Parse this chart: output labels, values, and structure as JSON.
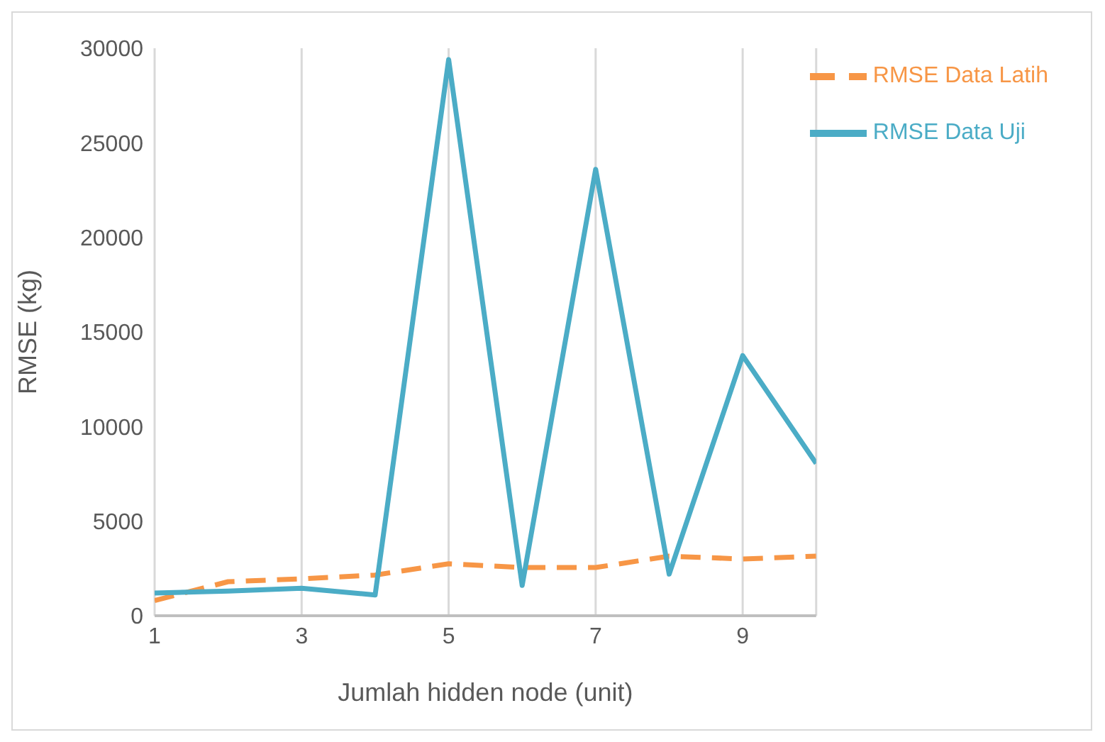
{
  "chart_data": {
    "type": "line",
    "xlabel": "Jumlah hidden node (unit)",
    "ylabel": "RMSE (kg)",
    "x": [
      1,
      2,
      3,
      4,
      5,
      6,
      7,
      8,
      9,
      10
    ],
    "series": [
      {
        "name": "RMSE Data Latih",
        "color": "#f79646",
        "line_style": "dashed",
        "values": [
          800,
          1800,
          1950,
          2150,
          2750,
          2550,
          2550,
          3150,
          3000,
          3150
        ]
      },
      {
        "name": "RMSE Data Uji",
        "color": "#4bacc6",
        "line_style": "solid",
        "values": [
          1200,
          1300,
          1450,
          1100,
          29400,
          1600,
          23600,
          2200,
          13750,
          8050
        ]
      }
    ],
    "xlim": [
      1,
      10
    ],
    "xticks": [
      1,
      3,
      5,
      7,
      9
    ],
    "ylim": [
      0,
      30000
    ],
    "yticks": [
      0,
      5000,
      10000,
      15000,
      20000,
      25000,
      30000
    ],
    "grid": "x",
    "legend": "top right",
    "marker": "none"
  }
}
